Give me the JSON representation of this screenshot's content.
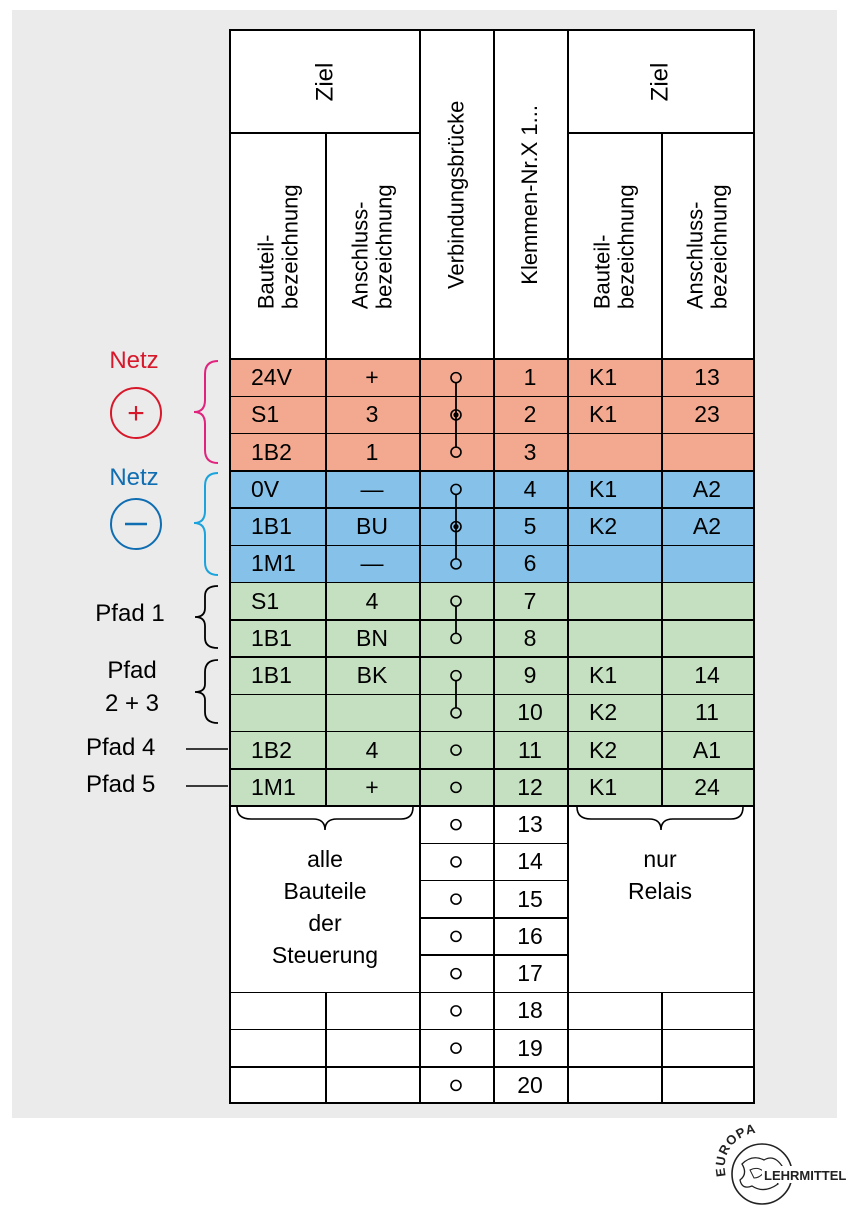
{
  "headers": {
    "left_ziel": "Ziel",
    "right_ziel": "Ziel",
    "left_bauteil": "Bauteil-\nbezeichnung",
    "left_anschluss": "Anschluss-\nbezeichnung",
    "bruecke": "Verbindungsbrücke",
    "klemmen": "Klemmen-Nr.X 1...",
    "right_bauteil": "Bauteil-\nbezeichnung",
    "right_anschluss": "Anschluss-\nbezeichnung"
  },
  "rows": [
    {
      "n": "1",
      "lb": "24V",
      "la": "+",
      "rb": "K1",
      "ra": "13"
    },
    {
      "n": "2",
      "lb": "S1",
      "la": "3",
      "rb": "K1",
      "ra": "23"
    },
    {
      "n": "3",
      "lb": "1B2",
      "la": "1",
      "rb": "",
      "ra": ""
    },
    {
      "n": "4",
      "lb": "0V",
      "la": "—",
      "rb": "K1",
      "ra": "A2"
    },
    {
      "n": "5",
      "lb": "1B1",
      "la": "BU",
      "rb": "K2",
      "ra": "A2"
    },
    {
      "n": "6",
      "lb": "1M1",
      "la": "—",
      "rb": "",
      "ra": ""
    },
    {
      "n": "7",
      "lb": "S1",
      "la": "4",
      "rb": "",
      "ra": ""
    },
    {
      "n": "8",
      "lb": "1B1",
      "la": "BN",
      "rb": "",
      "ra": ""
    },
    {
      "n": "9",
      "lb": "1B1",
      "la": "BK",
      "rb": "K1",
      "ra": "14"
    },
    {
      "n": "10",
      "lb": "",
      "la": "",
      "rb": "K2",
      "ra": "11"
    },
    {
      "n": "11",
      "lb": "1B2",
      "la": "4",
      "rb": "K2",
      "ra": "A1"
    },
    {
      "n": "12",
      "lb": "1M1",
      "la": "+",
      "rb": "K1",
      "ra": "24"
    },
    {
      "n": "13",
      "lb": "",
      "la": "",
      "rb": "",
      "ra": ""
    },
    {
      "n": "14",
      "lb": "",
      "la": "",
      "rb": "",
      "ra": ""
    },
    {
      "n": "15",
      "lb": "",
      "la": "",
      "rb": "",
      "ra": ""
    },
    {
      "n": "16",
      "lb": "",
      "la": "",
      "rb": "",
      "ra": ""
    },
    {
      "n": "17",
      "lb": "",
      "la": "",
      "rb": "",
      "ra": ""
    },
    {
      "n": "18",
      "lb": "",
      "la": "",
      "rb": "",
      "ra": ""
    },
    {
      "n": "19",
      "lb": "",
      "la": "",
      "rb": "",
      "ra": ""
    },
    {
      "n": "20",
      "lb": "",
      "la": "",
      "rb": "",
      "ra": ""
    }
  ],
  "groups": [
    {
      "name": "netz-plus",
      "first_row": 1,
      "last_row": 3,
      "color": "#f2a98f",
      "bridge_rows": [
        1,
        3
      ]
    },
    {
      "name": "netz-minus",
      "first_row": 4,
      "last_row": 6,
      "color": "#85c1e8",
      "bridge_rows": [
        4,
        6
      ]
    },
    {
      "name": "pfad",
      "first_row": 7,
      "last_row": 12,
      "color": "#c5e0c0",
      "bridge_rows": [
        7,
        8,
        9,
        10
      ]
    }
  ],
  "side_labels": {
    "netz_plus": "Netz",
    "netz_plus_symbol": "+",
    "netz_plus_color": "#d7182a",
    "netz_plus_brace_color": "#e0237d",
    "netz_minus": "Netz",
    "netz_minus_symbol": "–",
    "netz_minus_color": "#0f6db2",
    "netz_minus_brace_color": "#1aa3dc",
    "pfad1": "Pfad 1",
    "pfad23_line1": "Pfad",
    "pfad23_line2": "2 + 3",
    "pfad4": "Pfad 4",
    "pfad5": "Pfad 5"
  },
  "notes": {
    "left_lines": [
      "alle",
      "Bauteile",
      "der",
      "Steuerung"
    ],
    "right_lines": [
      "nur",
      "Relais"
    ]
  },
  "logo": {
    "top_text": "EUROPA",
    "bottom_text": "LEHRMITTEL"
  }
}
